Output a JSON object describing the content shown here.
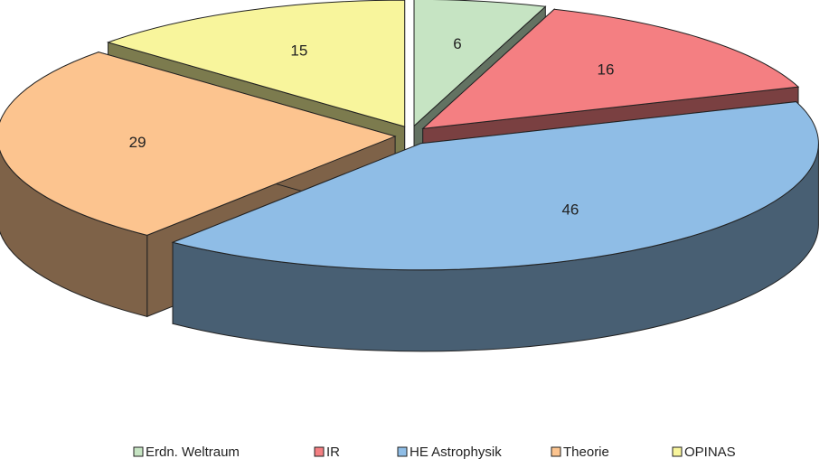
{
  "chart_data": {
    "type": "pie3d",
    "categories": [
      "Erdn. Weltraum",
      "IR",
      "HE Astrophysik",
      "Theorie",
      "OPINAS"
    ],
    "values": [
      6,
      16,
      46,
      29,
      15
    ],
    "colors": [
      "#c6e4c3",
      "#f47f82",
      "#8fbde6",
      "#fcc48f",
      "#f8f59c"
    ]
  }
}
